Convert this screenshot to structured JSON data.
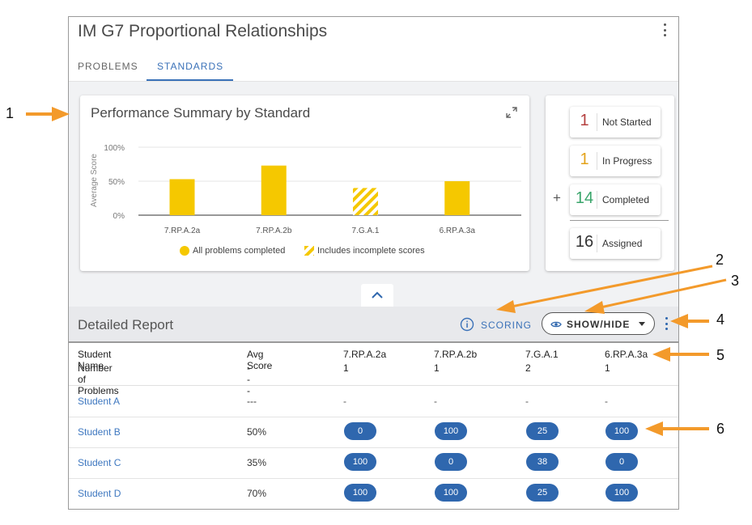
{
  "app": {
    "title": "IM G7 Proportional Relationships",
    "tabs": [
      {
        "label": "PROBLEMS"
      },
      {
        "label": "STANDARDS"
      }
    ],
    "active_tab": "STANDARDS"
  },
  "summary": {
    "title": "Performance Summary by Standard",
    "legend": {
      "completed": "All problems completed",
      "incomplete": "Includes incomplete scores"
    }
  },
  "chart_data": {
    "type": "bar",
    "title": "Performance Summary by Standard",
    "xlabel": "",
    "ylabel": "Average Score",
    "categories": [
      "7.RP.A.2a",
      "7.RP.A.2b",
      "7.G.A.1",
      "6.RP.A.3a"
    ],
    "values": [
      53,
      73,
      40,
      50
    ],
    "incomplete": [
      false,
      false,
      true,
      false
    ],
    "ylim": [
      0,
      100
    ],
    "yticks": [
      "0%",
      "50%",
      "100%"
    ],
    "colors": {
      "bar": "#f5c800",
      "hatch": "#f5c800"
    }
  },
  "stats": {
    "not_started": {
      "value": "1",
      "label": "Not Started",
      "color": "#b5403f"
    },
    "in_progress": {
      "value": "1",
      "label": "In Progress",
      "color": "#e3a21a"
    },
    "completed": {
      "value": "14",
      "label": "Completed",
      "color": "#3aa56b"
    },
    "plus": "+",
    "assigned": {
      "value": "16",
      "label": "Assigned",
      "color": "#333333"
    }
  },
  "report": {
    "title": "Detailed Report",
    "scoring_label": "SCORING",
    "show_hide_label": "SHOW/HIDE",
    "columns": [
      {
        "name": "Student Name",
        "sub": "Number of Problems"
      },
      {
        "name": "Avg Score",
        "sub": "---"
      },
      {
        "name": "7.RP.A.2a",
        "sub": "1"
      },
      {
        "name": "7.RP.A.2b",
        "sub": "1"
      },
      {
        "name": "7.G.A.1",
        "sub": "2"
      },
      {
        "name": "6.RP.A.3a",
        "sub": "1"
      }
    ],
    "rows": [
      {
        "name": "Student A",
        "avg": "---",
        "scores": [
          "-",
          "-",
          "-",
          "-"
        ]
      },
      {
        "name": "Student B",
        "avg": "50%",
        "scores": [
          "0",
          "100",
          "25",
          "100"
        ]
      },
      {
        "name": "Student C",
        "avg": "35%",
        "scores": [
          "100",
          "0",
          "38",
          "0"
        ]
      },
      {
        "name": "Student D",
        "avg": "70%",
        "scores": [
          "100",
          "100",
          "25",
          "100"
        ]
      }
    ]
  },
  "callouts": [
    "1",
    "2",
    "3",
    "4",
    "5",
    "6"
  ],
  "colors": {
    "accent": "#3a71b8",
    "pill": "#2f67ae",
    "arrow": "#f39a2b"
  }
}
